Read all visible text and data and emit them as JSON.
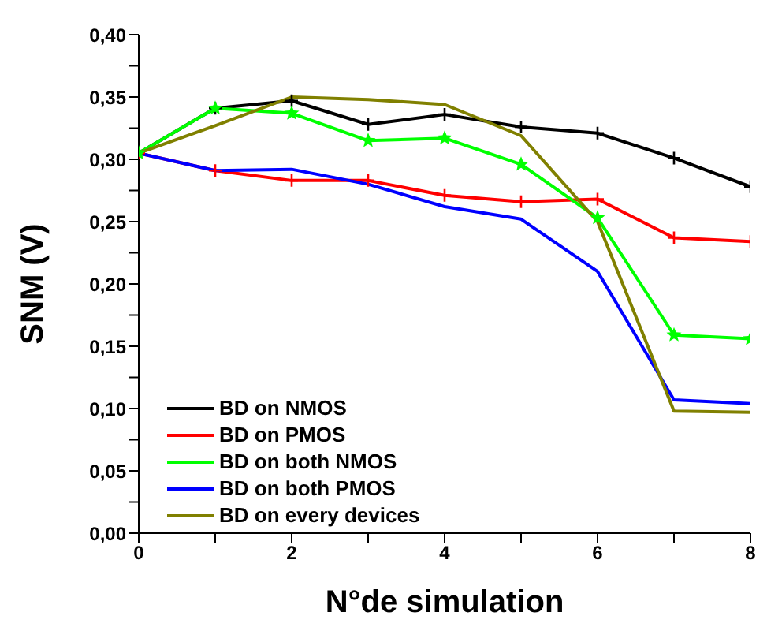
{
  "chart_data": {
    "type": "line",
    "xlabel": "N°de simulation",
    "ylabel": "SNM (V)",
    "x": [
      0,
      1,
      2,
      3,
      4,
      5,
      6,
      7,
      8
    ],
    "series": [
      {
        "name": "BD on NMOS",
        "color": "#000000",
        "marker": "cross",
        "values": [
          0.305,
          0.341,
          0.347,
          0.328,
          0.336,
          0.326,
          0.321,
          0.301,
          0.278
        ]
      },
      {
        "name": "BD on PMOS",
        "color": "#ff0000",
        "marker": "cross",
        "values": [
          0.305,
          0.291,
          0.283,
          0.283,
          0.271,
          0.266,
          0.268,
          0.237,
          0.234
        ]
      },
      {
        "name": "BD on both NMOS",
        "color": "#00ff00",
        "marker": "star",
        "values": [
          0.305,
          0.341,
          0.337,
          0.315,
          0.317,
          0.296,
          0.253,
          0.159,
          0.156
        ]
      },
      {
        "name": "BD on both PMOS",
        "color": "#0000ff",
        "marker": "none",
        "values": [
          0.305,
          0.291,
          0.292,
          0.28,
          0.262,
          0.252,
          0.21,
          0.107,
          0.104
        ]
      },
      {
        "name": "BD on every devices",
        "color": "#808000",
        "marker": "none",
        "values": [
          0.305,
          0.327,
          0.35,
          0.348,
          0.344,
          0.319,
          0.25,
          0.098,
          0.097
        ]
      }
    ],
    "xlim": [
      0,
      8
    ],
    "xticks": [
      0,
      {
        "value": 1,
        "label": null
      },
      2,
      {
        "value": 3,
        "label": null
      },
      4,
      {
        "value": 5,
        "label": null
      },
      6,
      {
        "value": 7,
        "label": null
      },
      8
    ],
    "ylim": [
      0,
      0.4
    ],
    "yticks": [
      {
        "value": 0,
        "label": "0,00"
      },
      {
        "value": 0.025,
        "label": null
      },
      {
        "value": 0.05,
        "label": "0,05"
      },
      {
        "value": 0.075,
        "label": null
      },
      {
        "value": 0.1,
        "label": "0,10"
      },
      {
        "value": 0.125,
        "label": null
      },
      {
        "value": 0.15,
        "label": "0,15"
      },
      {
        "value": 0.175,
        "label": null
      },
      {
        "value": 0.2,
        "label": "0,20"
      },
      {
        "value": 0.225,
        "label": null
      },
      {
        "value": 0.25,
        "label": "0,25"
      },
      {
        "value": 0.275,
        "label": null
      },
      {
        "value": 0.3,
        "label": "0,30"
      },
      {
        "value": 0.325,
        "label": null
      },
      {
        "value": 0.35,
        "label": "0,35"
      },
      {
        "value": 0.375,
        "label": null
      },
      {
        "value": 0.4,
        "label": "0,40"
      }
    ],
    "grid": false,
    "legend": "bottom left",
    "line_style": "solid"
  }
}
